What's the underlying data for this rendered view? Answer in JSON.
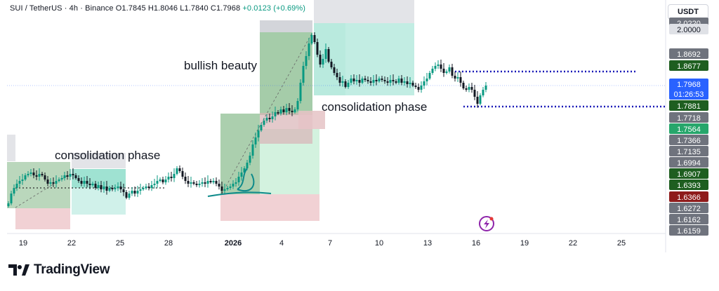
{
  "header": {
    "symbol": "SUI / TetherUS · 4h · Binance",
    "open": "O1.7845",
    "high": "H1.8046",
    "low": "L1.7840",
    "close": "C1.7968",
    "change": "+0.0123 (+0.69%)"
  },
  "currency_button": "USDT",
  "footer": {
    "brand": "TradingView"
  },
  "chart_data": {
    "type": "candlestick",
    "title": "",
    "x_ticks": [
      "19",
      "22",
      "25",
      "28",
      "2026",
      "4",
      "7",
      "10",
      "13",
      "16",
      "19",
      "22",
      "25"
    ],
    "price_axis_labels": [
      {
        "text": "2.0220",
        "bg": "#6f737d",
        "fg": "#ffffff"
      },
      {
        "text": "2.0000",
        "bg": "#dfe1e6",
        "fg": "#131722"
      },
      {
        "text": "1.8692",
        "bg": "#6f737d",
        "fg": "#ffffff"
      },
      {
        "text": "1.8677",
        "bg": "#1e5e20",
        "fg": "#ffffff"
      },
      {
        "text": "1.7968",
        "bg": "#2962ff",
        "fg": "#ffffff",
        "sub": "01:26:53"
      },
      {
        "text": "1.7881",
        "bg": "#1e5e20",
        "fg": "#ffffff"
      },
      {
        "text": "1.7718",
        "bg": "#6f737d",
        "fg": "#ffffff"
      },
      {
        "text": "1.7564",
        "bg": "#26a66b",
        "fg": "#ffffff"
      },
      {
        "text": "1.7366",
        "bg": "#6f737d",
        "fg": "#ffffff"
      },
      {
        "text": "1.7135",
        "bg": "#6f737d",
        "fg": "#ffffff"
      },
      {
        "text": "1.6994",
        "bg": "#6f737d",
        "fg": "#ffffff"
      },
      {
        "text": "1.6907",
        "bg": "#1e5e20",
        "fg": "#ffffff"
      },
      {
        "text": "1.6393",
        "bg": "#1e5e20",
        "fg": "#ffffff"
      },
      {
        "text": "1.6366",
        "bg": "#8e1b1b",
        "fg": "#ffffff"
      },
      {
        "text": "1.6272",
        "bg": "#6f737d",
        "fg": "#ffffff"
      },
      {
        "text": "1.6162",
        "bg": "#6f737d",
        "fg": "#ffffff"
      },
      {
        "text": "1.6159",
        "bg": "#6f737d",
        "fg": "#ffffff"
      }
    ],
    "annotations": [
      "bullish beauty",
      "consolidation phase",
      "consolidation phase"
    ],
    "current_price": 1.7968,
    "countdown": "01:26:53",
    "ylim": [
      1.6,
      2.03
    ],
    "colors": {
      "up": "#089981",
      "down": "#131722",
      "last_price": "#2962ff",
      "dotted_level": "#1b1bb8"
    }
  }
}
